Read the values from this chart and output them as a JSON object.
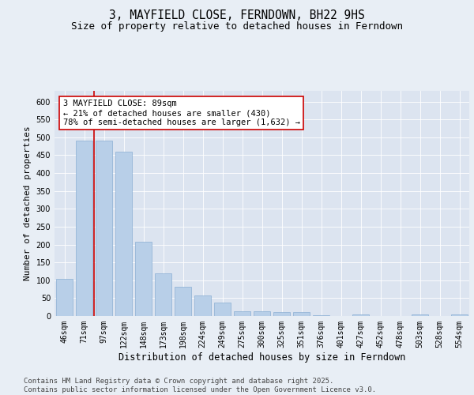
{
  "title": "3, MAYFIELD CLOSE, FERNDOWN, BH22 9HS",
  "subtitle": "Size of property relative to detached houses in Ferndown",
  "xlabel": "Distribution of detached houses by size in Ferndown",
  "ylabel": "Number of detached properties",
  "categories": [
    "46sqm",
    "71sqm",
    "97sqm",
    "122sqm",
    "148sqm",
    "173sqm",
    "198sqm",
    "224sqm",
    "249sqm",
    "275sqm",
    "300sqm",
    "325sqm",
    "351sqm",
    "376sqm",
    "401sqm",
    "427sqm",
    "452sqm",
    "478sqm",
    "503sqm",
    "528sqm",
    "554sqm"
  ],
  "values": [
    105,
    490,
    490,
    460,
    207,
    120,
    82,
    57,
    38,
    13,
    13,
    10,
    12,
    3,
    0,
    5,
    0,
    0,
    5,
    0,
    5
  ],
  "bar_color": "#b8cfe8",
  "bar_edge_color": "#8aafd4",
  "vline_x": 1.5,
  "vline_color": "#cc0000",
  "annotation_text": "3 MAYFIELD CLOSE: 89sqm\n← 21% of detached houses are smaller (430)\n78% of semi-detached houses are larger (1,632) →",
  "annotation_box_color": "#ffffff",
  "annotation_box_edge_color": "#cc0000",
  "ylim": [
    0,
    630
  ],
  "yticks": [
    0,
    50,
    100,
    150,
    200,
    250,
    300,
    350,
    400,
    450,
    500,
    550,
    600
  ],
  "background_color": "#e8eef5",
  "plot_bg_color": "#dce4f0",
  "grid_color": "#ffffff",
  "footer_text": "Contains HM Land Registry data © Crown copyright and database right 2025.\nContains public sector information licensed under the Open Government Licence v3.0.",
  "title_fontsize": 10.5,
  "subtitle_fontsize": 9,
  "tick_fontsize": 7,
  "xlabel_fontsize": 8.5,
  "ylabel_fontsize": 8,
  "footer_fontsize": 6.5,
  "ann_fontsize": 7.5
}
